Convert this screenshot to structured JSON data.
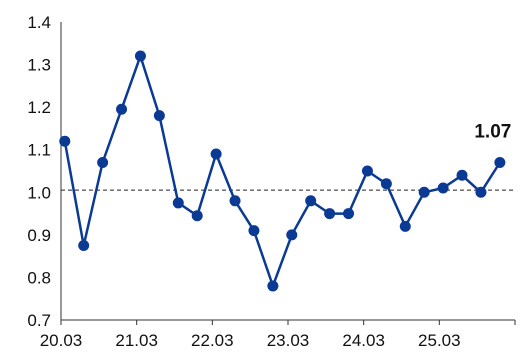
{
  "chart_data": {
    "type": "line",
    "title": "",
    "xlabel": "",
    "ylabel": "",
    "x_ticks": [
      "20.03",
      "21.03",
      "22.03",
      "23.03",
      "24.03",
      "25.03"
    ],
    "y_ticks": [
      "0.7",
      "0.8",
      "0.9",
      "1.0",
      "1.1",
      "1.2",
      "1.3",
      "1.4"
    ],
    "ylim": [
      0.7,
      1.4
    ],
    "x_range": [
      0,
      24
    ],
    "x_tick_positions": [
      0,
      4,
      8,
      12,
      16,
      20
    ],
    "reference_line": 1.005,
    "series": [
      {
        "color": "#0a3a94",
        "x": [
          0.2,
          1.2,
          2.2,
          3.2,
          4.2,
          5.2,
          6.2,
          7.2,
          8.2,
          9.2,
          10.2,
          11.2,
          12.2,
          13.2,
          14.2,
          15.2,
          16.2,
          17.2,
          18.2,
          19.2,
          20.2,
          21.2,
          22.2,
          23.2
        ],
        "values": [
          1.12,
          0.875,
          1.07,
          1.195,
          1.32,
          1.18,
          0.975,
          0.945,
          1.09,
          0.98,
          0.91,
          0.78,
          0.9,
          0.98,
          0.95,
          0.95,
          1.05,
          1.02,
          0.92,
          1.0,
          1.01,
          1.04,
          1.0,
          1.07
        ]
      }
    ],
    "last_value_label": "1.07",
    "grid": false,
    "legend": "none"
  }
}
